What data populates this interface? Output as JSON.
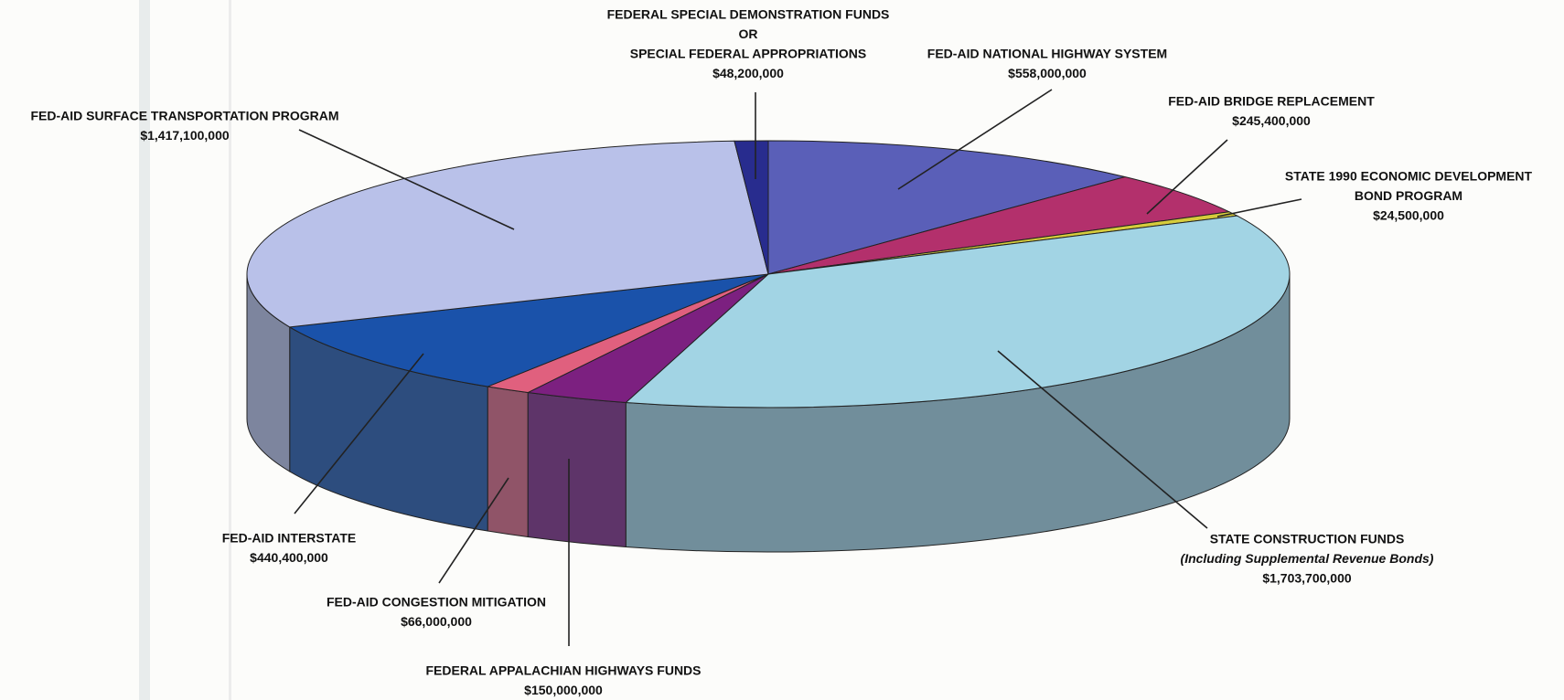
{
  "chart_data": {
    "type": "pie3d",
    "categories": [
      [
        "FED-AID NATIONAL HIGHWAY SYSTEM"
      ],
      [
        "FED-AID BRIDGE REPLACEMENT"
      ],
      [
        "STATE 1990 ECONOMIC DEVELOPMENT",
        "BOND PROGRAM"
      ],
      [
        "STATE CONSTRUCTION FUNDS",
        "(Including Supplemental Revenue Bonds)"
      ],
      [
        "FEDERAL APPALACHIAN HIGHWAYS FUNDS"
      ],
      [
        "FED-AID CONGESTION MITIGATION"
      ],
      [
        "FED-AID INTERSTATE"
      ],
      [
        "FED-AID SURFACE TRANSPORTATION PROGRAM"
      ],
      [
        "FEDERAL SPECIAL DEMONSTRATION FUNDS",
        "OR",
        "SPECIAL FEDERAL APPROPRIATIONS"
      ]
    ],
    "values": [
      558000000,
      245400000,
      24500000,
      1703700000,
      150000000,
      66000000,
      440400000,
      1417100000,
      48200000
    ],
    "value_labels": [
      "$558,000,000",
      "$245,400,000",
      "$24,500,000",
      "$1,703,700,000",
      "$150,000,000",
      "$66,000,000",
      "$440,400,000",
      "$1,417,100,000",
      "$48,200,000"
    ],
    "colors": [
      "#5a5fb8",
      "#b3306c",
      "#d6cc3c",
      "#a2d4e4",
      "#7c2080",
      "#e0607e",
      "#1a52aa",
      "#b9c1e9",
      "#282c8e"
    ]
  }
}
